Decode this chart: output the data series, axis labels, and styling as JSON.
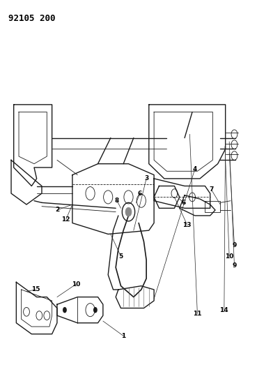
{
  "title": "92105 200",
  "background_color": "#ffffff",
  "line_color": "#1a1a1a",
  "label_color": "#000000",
  "figsize": [
    3.69,
    5.33
  ],
  "dpi": 100
}
